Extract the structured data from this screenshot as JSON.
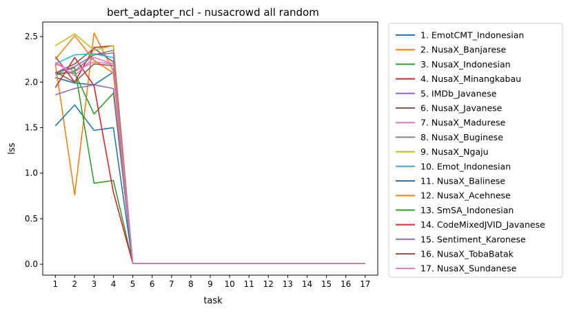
{
  "chart_data": {
    "type": "line",
    "title": "bert_adapter_ncl - nusacrowd all random",
    "xlabel": "task",
    "ylabel": "lss",
    "x": [
      1,
      2,
      3,
      4,
      5,
      6,
      7,
      8,
      9,
      10,
      11,
      12,
      13,
      14,
      15,
      16,
      17
    ],
    "xticks": [
      "1",
      "2",
      "3",
      "4",
      "5",
      "6",
      "7",
      "8",
      "9",
      "10",
      "11",
      "12",
      "13",
      "14",
      "15",
      "16",
      "17"
    ],
    "yticks": [
      "0.0",
      "0.5",
      "1.0",
      "1.5",
      "2.0",
      "2.5"
    ],
    "ytick_values": [
      0.0,
      0.5,
      1.0,
      1.5,
      2.0,
      2.5
    ],
    "xlim": [
      0.35,
      17.65
    ],
    "ylim": [
      -0.12,
      2.66
    ],
    "grid": false,
    "legend_position": "outside-right",
    "series": [
      {
        "name": "1. EmotCMT_Indonesian",
        "color": "#1f77b4",
        "values": [
          2.05,
          1.99,
          1.97,
          2.11,
          0.01,
          0.01,
          0.01,
          0.01,
          0.01,
          0.01,
          0.01,
          0.01,
          0.01,
          0.01,
          0.01,
          0.01,
          0.01
        ]
      },
      {
        "name": "2. NusaX_Banjarese",
        "color": "#ff7f0e",
        "values": [
          2.2,
          0.76,
          2.54,
          2.12,
          0.01,
          0.01,
          0.01,
          0.01,
          0.01,
          0.01,
          0.01,
          0.01,
          0.01,
          0.01,
          0.01,
          0.01,
          0.01
        ]
      },
      {
        "name": "3. NusaX_Indonesian",
        "color": "#2ca02c",
        "values": [
          2.1,
          2.1,
          1.65,
          1.88,
          0.01,
          0.01,
          0.01,
          0.01,
          0.01,
          0.01,
          0.01,
          0.01,
          0.01,
          0.01,
          0.01,
          0.01,
          0.01
        ]
      },
      {
        "name": "4. NusaX_Minangkabau",
        "color": "#d62728",
        "values": [
          2.28,
          2.0,
          2.38,
          2.4,
          0.01,
          0.01,
          0.01,
          0.01,
          0.01,
          0.01,
          0.01,
          0.01,
          0.01,
          0.01,
          0.01,
          0.01,
          0.01
        ]
      },
      {
        "name": "5. IMDb_Javanese",
        "color": "#9467bd",
        "values": [
          1.86,
          1.93,
          1.97,
          1.93,
          0.01,
          0.01,
          0.01,
          0.01,
          0.01,
          0.01,
          0.01,
          0.01,
          0.01,
          0.01,
          0.01,
          0.01,
          0.01
        ]
      },
      {
        "name": "6. NusaX_Javanese",
        "color": "#8c564b",
        "values": [
          2.1,
          2.2,
          2.37,
          2.22,
          0.01,
          0.01,
          0.01,
          0.01,
          0.01,
          0.01,
          0.01,
          0.01,
          0.01,
          0.01,
          0.01,
          0.01,
          0.01
        ]
      },
      {
        "name": "7. NusaX_Madurese",
        "color": "#e377c2",
        "values": [
          2.2,
          2.12,
          2.22,
          2.2,
          0.01,
          0.01,
          0.01,
          0.01,
          0.01,
          0.01,
          0.01,
          0.01,
          0.01,
          0.01,
          0.01,
          0.01,
          0.01
        ]
      },
      {
        "name": "8. NusaX_Buginese",
        "color": "#7f7f7f",
        "values": [
          2.08,
          2.12,
          2.3,
          2.35,
          0.01,
          0.01,
          0.01,
          0.01,
          0.01,
          0.01,
          0.01,
          0.01,
          0.01,
          0.01,
          0.01,
          0.01,
          0.01
        ]
      },
      {
        "name": "9. NusaX_Ngaju",
        "color": "#bcbd22",
        "values": [
          2.4,
          2.53,
          2.35,
          2.4,
          0.01,
          0.01,
          0.01,
          0.01,
          0.01,
          0.01,
          0.01,
          0.01,
          0.01,
          0.01,
          0.01,
          0.01,
          0.01
        ]
      },
      {
        "name": "10. Emot_Indonesian",
        "color": "#17becf",
        "values": [
          2.2,
          2.3,
          2.31,
          2.27,
          0.01,
          0.01,
          0.01,
          0.01,
          0.01,
          0.01,
          0.01,
          0.01,
          0.01,
          0.01,
          0.01,
          0.01,
          0.01
        ]
      },
      {
        "name": "11. NusaX_Balinese",
        "color": "#1f77b4",
        "values": [
          1.52,
          1.75,
          1.47,
          1.5,
          0.01,
          0.01,
          0.01,
          0.01,
          0.01,
          0.01,
          0.01,
          0.01,
          0.01,
          0.01,
          0.01,
          0.01,
          0.01
        ]
      },
      {
        "name": "12. NusaX_Acehnese",
        "color": "#ff7f0e",
        "values": [
          2.25,
          2.51,
          2.24,
          2.1,
          0.01,
          0.01,
          0.01,
          0.01,
          0.01,
          0.01,
          0.01,
          0.01,
          0.01,
          0.01,
          0.01,
          0.01,
          0.01
        ]
      },
      {
        "name": "13. SmSA_Indonesian",
        "color": "#2ca02c",
        "values": [
          2.1,
          2.16,
          0.89,
          0.92,
          0.01,
          0.01,
          0.01,
          0.01,
          0.01,
          0.01,
          0.01,
          0.01,
          0.01,
          0.01,
          0.01,
          0.01,
          0.01
        ]
      },
      {
        "name": "14. CodeMixedJVID_Javanese",
        "color": "#d62728",
        "values": [
          1.94,
          2.27,
          1.96,
          0.79,
          0.01,
          0.01,
          0.01,
          0.01,
          0.01,
          0.01,
          0.01,
          0.01,
          0.01,
          0.01,
          0.01,
          0.01,
          0.01
        ]
      },
      {
        "name": "15. Sentiment_Karonese",
        "color": "#9467bd",
        "values": [
          2.1,
          2.17,
          2.3,
          2.32,
          0.01,
          0.01,
          0.01,
          0.01,
          0.01,
          0.01,
          0.01,
          0.01,
          0.01,
          0.01,
          0.01,
          0.01,
          0.01
        ]
      },
      {
        "name": "16. NusaX_TobaBatak",
        "color": "#8c564b",
        "values": [
          2.11,
          2.0,
          2.2,
          2.18,
          0.01,
          0.01,
          0.01,
          0.01,
          0.01,
          0.01,
          0.01,
          0.01,
          0.01,
          0.01,
          0.01,
          0.01,
          0.01
        ]
      },
      {
        "name": "17. NusaX_Sundanese",
        "color": "#e377c2",
        "values": [
          2.22,
          2.07,
          2.27,
          2.2,
          0.01,
          0.01,
          0.01,
          0.01,
          0.01,
          0.01,
          0.01,
          0.01,
          0.01,
          0.01,
          0.01,
          0.01,
          0.01
        ]
      }
    ]
  }
}
